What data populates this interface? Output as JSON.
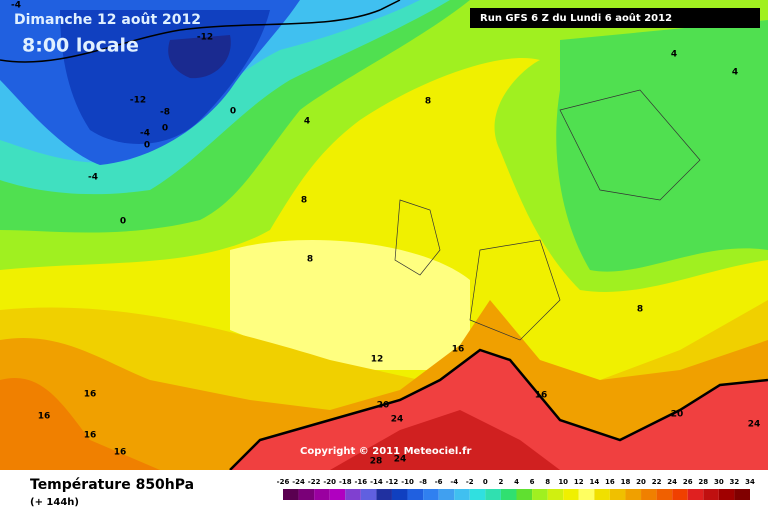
{
  "header": {
    "date": "Dimanche 12 août 2012",
    "time": "8:00 locale",
    "run": "Run GFS 6 Z du Lundi 6 août 2012"
  },
  "footer": {
    "title": "Température 850hPa",
    "lead": "(+ 144h)",
    "copyright": "Copyright © 2011 Meteociel.fr"
  },
  "contour_labels": [
    -4,
    -12,
    -12,
    -8,
    0,
    -4,
    0,
    0,
    -4,
    0,
    4,
    8,
    4,
    4,
    8,
    8,
    8,
    12,
    16,
    16,
    16,
    16,
    16,
    16,
    20,
    24,
    20,
    24,
    28,
    24
  ],
  "color_scale": {
    "labels": [
      -26,
      -24,
      -22,
      -20,
      -18,
      -16,
      -14,
      -12,
      -10,
      -8,
      -6,
      -4,
      -2,
      0,
      2,
      4,
      6,
      8,
      10,
      12,
      14,
      16,
      18,
      20,
      22,
      24,
      26,
      28,
      30,
      32,
      34
    ],
    "colors": [
      "#5a0050",
      "#7a0078",
      "#9a00a0",
      "#b000c0",
      "#8040d0",
      "#6060e0",
      "#2030a0",
      "#1040c0",
      "#2060e0",
      "#3080f0",
      "#40a0f0",
      "#40c0f0",
      "#30e0e0",
      "#30e0b0",
      "#30e070",
      "#60e030",
      "#a0f020",
      "#d0f010",
      "#f0f000",
      "#ffff60",
      "#f0e000",
      "#f0c000",
      "#f0a000",
      "#f08000",
      "#f06000",
      "#f04000",
      "#e02020",
      "#c01010",
      "#a00000",
      "#800000"
    ]
  }
}
